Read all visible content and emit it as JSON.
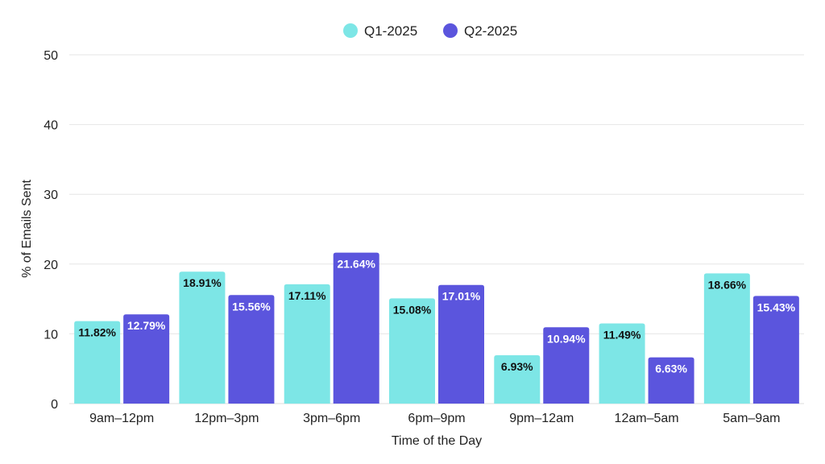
{
  "chart_data": {
    "type": "bar",
    "categories": [
      "9am–12pm",
      "12pm–3pm",
      "3pm–6pm",
      "6pm–9pm",
      "9pm–12am",
      "12am–5am",
      "5am–9am"
    ],
    "series": [
      {
        "name": "Q1-2025",
        "color": "#7de6e6",
        "label_color": "#111111",
        "values": [
          11.82,
          18.91,
          17.11,
          15.08,
          6.93,
          11.49,
          18.66
        ],
        "labels": [
          "11.82%",
          "18.91%",
          "17.11%",
          "15.08%",
          "6.93%",
          "11.49%",
          "18.66%"
        ]
      },
      {
        "name": "Q2-2025",
        "color": "#5b55dd",
        "label_color": "#ffffff",
        "values": [
          12.79,
          15.56,
          21.64,
          17.01,
          10.94,
          6.63,
          15.43
        ],
        "labels": [
          "12.79%",
          "15.56%",
          "21.64%",
          "17.01%",
          "10.94%",
          "6.63%",
          "15.43%"
        ]
      }
    ],
    "xlabel": "Time of the Day",
    "ylabel": "% of Emails Sent",
    "ylim": [
      0,
      50
    ],
    "yticks": [
      "0",
      "10",
      "20",
      "30",
      "40",
      "50"
    ],
    "grid": true,
    "legend_position": "top-center"
  }
}
